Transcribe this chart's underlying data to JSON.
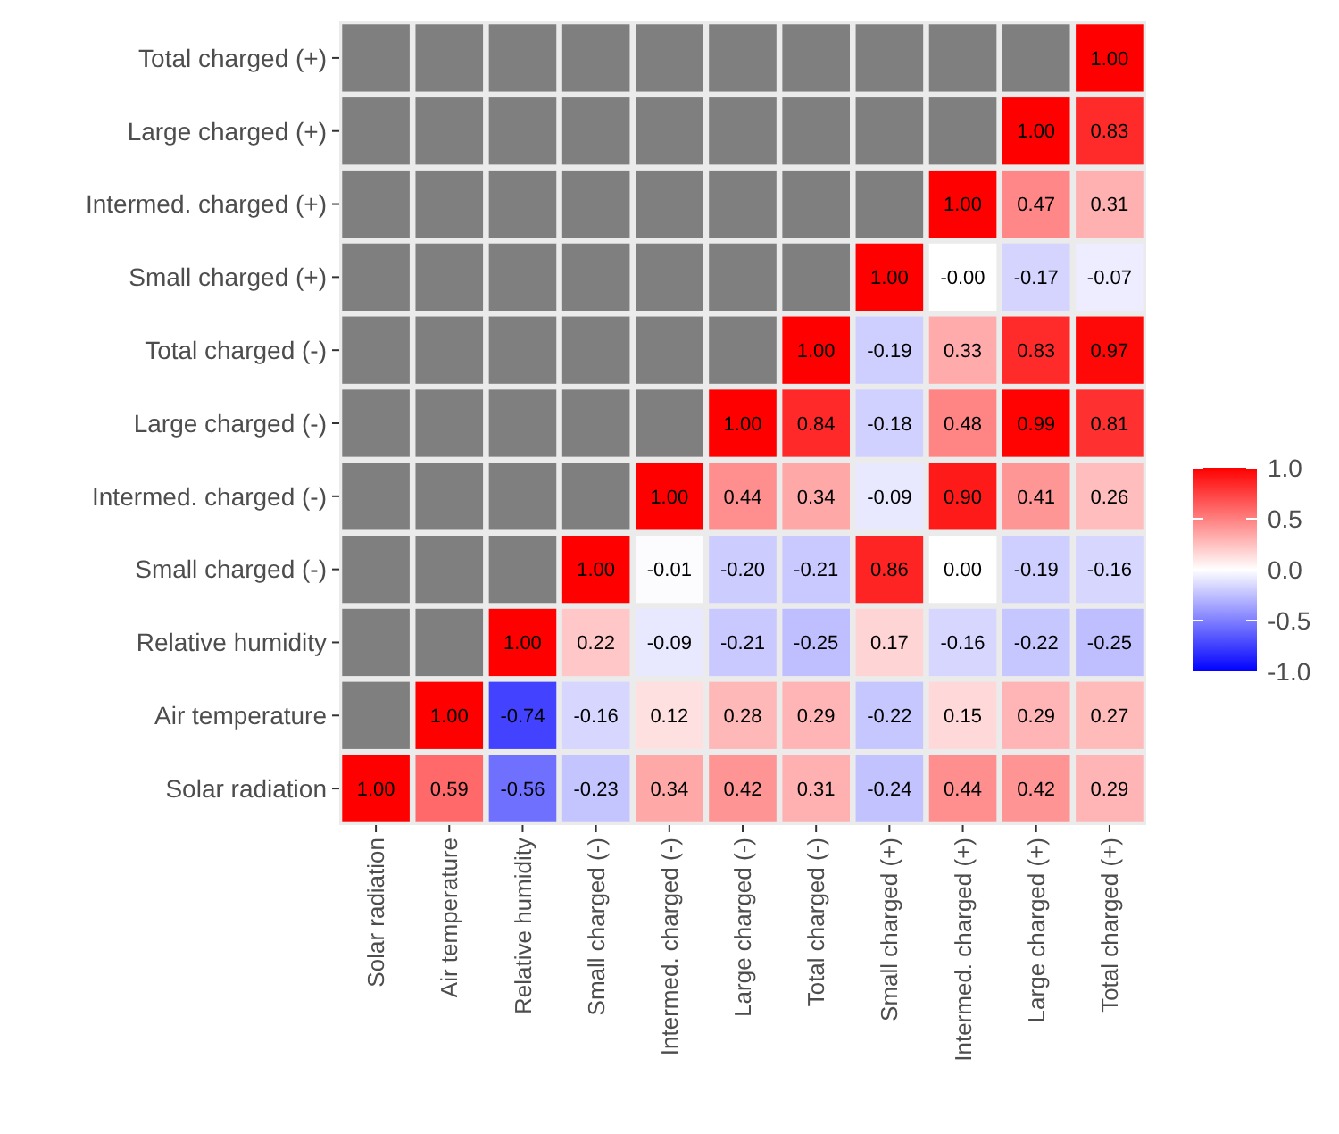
{
  "chart_data": {
    "type": "heatmap",
    "categories": [
      "Solar radiation",
      "Air temperature",
      "Relative humidity",
      "Small charged (-)",
      "Intermed. charged (-)",
      "Large charged (-)",
      "Total charged (-)",
      "Small charged (+)",
      "Intermed. charged (+)",
      "Large charged (+)",
      "Total charged (+)"
    ],
    "y_categories": [
      "Total charged (+)",
      "Large charged (+)",
      "Intermed. charged (+)",
      "Small charged (+)",
      "Total charged (-)",
      "Large charged (-)",
      "Intermed. charged (-)",
      "Small charged (-)",
      "Relative humidity",
      "Air temperature",
      "Solar radiation"
    ],
    "cells": [
      [
        null,
        null,
        null,
        null,
        null,
        null,
        null,
        null,
        null,
        null,
        1.0
      ],
      [
        null,
        null,
        null,
        null,
        null,
        null,
        null,
        null,
        null,
        1.0,
        0.83
      ],
      [
        null,
        null,
        null,
        null,
        null,
        null,
        null,
        null,
        1.0,
        0.47,
        0.31
      ],
      [
        null,
        null,
        null,
        null,
        null,
        null,
        null,
        1.0,
        0,
        -0.17,
        -0.07
      ],
      [
        null,
        null,
        null,
        null,
        null,
        null,
        1.0,
        -0.19,
        0.33,
        0.83,
        0.97
      ],
      [
        null,
        null,
        null,
        null,
        null,
        1.0,
        0.84,
        -0.18,
        0.48,
        0.99,
        0.81
      ],
      [
        null,
        null,
        null,
        null,
        1.0,
        0.44,
        0.34,
        -0.09,
        0.9,
        0.41,
        0.26
      ],
      [
        null,
        null,
        null,
        1.0,
        -0.01,
        -0.2,
        -0.21,
        0.86,
        0.0,
        -0.19,
        -0.16
      ],
      [
        null,
        null,
        1.0,
        0.22,
        -0.09,
        -0.21,
        -0.25,
        0.17,
        -0.16,
        -0.22,
        -0.25
      ],
      [
        null,
        1.0,
        -0.74,
        -0.16,
        0.12,
        0.28,
        0.29,
        -0.22,
        0.15,
        0.29,
        0.27
      ],
      [
        1.0,
        0.59,
        -0.56,
        -0.23,
        0.34,
        0.42,
        0.31,
        -0.24,
        0.44,
        0.42,
        0.29
      ]
    ],
    "cell_labels": [
      [
        null,
        null,
        null,
        null,
        null,
        null,
        null,
        null,
        null,
        null,
        "1.00"
      ],
      [
        null,
        null,
        null,
        null,
        null,
        null,
        null,
        null,
        null,
        "1.00",
        "0.83"
      ],
      [
        null,
        null,
        null,
        null,
        null,
        null,
        null,
        null,
        "1.00",
        "0.47",
        "0.31"
      ],
      [
        null,
        null,
        null,
        null,
        null,
        null,
        null,
        "1.00",
        "-0.00",
        "-0.17",
        "-0.07"
      ],
      [
        null,
        null,
        null,
        null,
        null,
        null,
        "1.00",
        "-0.19",
        "0.33",
        "0.83",
        "0.97"
      ],
      [
        null,
        null,
        null,
        null,
        null,
        "1.00",
        "0.84",
        "-0.18",
        "0.48",
        "0.99",
        "0.81"
      ],
      [
        null,
        null,
        null,
        null,
        "1.00",
        "0.44",
        "0.34",
        "-0.09",
        "0.90",
        "0.41",
        "0.26"
      ],
      [
        null,
        null,
        null,
        "1.00",
        "-0.01",
        "-0.20",
        "-0.21",
        "0.86",
        "0.00",
        "-0.19",
        "-0.16"
      ],
      [
        null,
        null,
        "1.00",
        "0.22",
        "-0.09",
        "-0.21",
        "-0.25",
        "0.17",
        "-0.16",
        "-0.22",
        "-0.25"
      ],
      [
        null,
        "1.00",
        "-0.74",
        "-0.16",
        "0.12",
        "0.28",
        "0.29",
        "-0.22",
        "0.15",
        "0.29",
        "0.27"
      ],
      [
        "1.00",
        "0.59",
        "-0.56",
        "-0.23",
        "0.34",
        "0.42",
        "0.31",
        "-0.24",
        "0.44",
        "0.42",
        "0.29"
      ]
    ],
    "clim": [
      -1,
      1
    ],
    "cticks": [
      {
        "value": 1,
        "label": "1.0"
      },
      {
        "value": 0.5,
        "label": "0.5"
      },
      {
        "value": 0,
        "label": "0.0"
      },
      {
        "value": -0.5,
        "label": "-0.5"
      },
      {
        "value": -1,
        "label": "-1.0"
      }
    ]
  }
}
